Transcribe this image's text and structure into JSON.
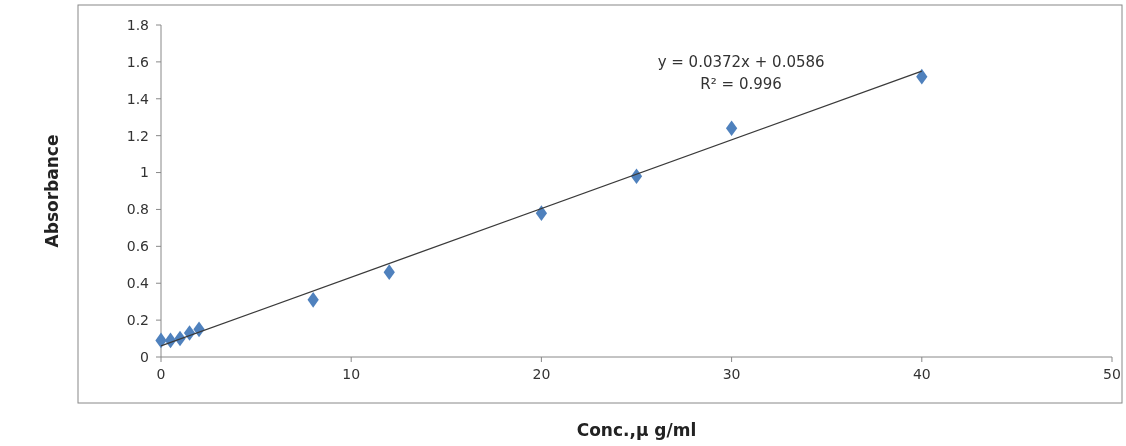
{
  "chart_data": {
    "type": "scatter",
    "xlabel": "Conc.,μ g/ml",
    "ylabel": "Absorbance",
    "xlim": [
      0,
      50
    ],
    "xticks": [
      0,
      10,
      20,
      30,
      40,
      50
    ],
    "ylim": [
      0,
      1.8
    ],
    "yticks": [
      0,
      0.2,
      0.4,
      0.6,
      0.8,
      1,
      1.2,
      1.4,
      1.6,
      1.8
    ],
    "marker": "diamond",
    "grid": false,
    "series": [
      {
        "color": "#4f81bd",
        "x": [
          0,
          0.5,
          1,
          1.5,
          2,
          8,
          12,
          20,
          25,
          30,
          40
        ],
        "values": [
          0.09,
          0.09,
          0.1,
          0.13,
          0.15,
          0.31,
          0.46,
          0.78,
          0.98,
          1.24,
          1.52
        ]
      },
      {
        "type": "line",
        "marker": "none",
        "color": "#3a3a3a",
        "x": [
          0,
          40
        ],
        "values": [
          0.06,
          1.55
        ]
      }
    ],
    "annotations": [
      "y = 0.0372x + 0.0586",
      "R² = 0.996"
    ]
  }
}
